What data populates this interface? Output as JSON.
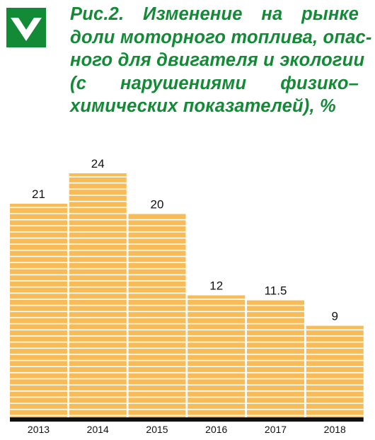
{
  "logo": {
    "icon": "check-chevron-icon",
    "color": "#138a36"
  },
  "title_lines": [
    "Рис.2. Изменение на рынке",
    "доли моторного топлива, опас-",
    "ного для двигателя и экологии",
    "(с нарушениями физико–",
    "химических показателей), %"
  ],
  "colors": {
    "title": "#138a36",
    "bar": "#f7bc57",
    "bar_stripe": "#ffffff",
    "axis": "#111111",
    "text": "#111111"
  },
  "chart_data": {
    "type": "bar",
    "title": "Рис.2. Изменение на рынке доли моторного топлива, опасного для двигателя и экологии (с нарушениями физико–химических показателей), %",
    "xlabel": "",
    "ylabel": "",
    "categories": [
      "2013",
      "2014",
      "2015",
      "2016",
      "2017",
      "2018"
    ],
    "values": [
      21,
      24,
      20,
      12,
      11.5,
      9
    ],
    "value_labels": [
      "21",
      "24",
      "20",
      "12",
      "11.5",
      "9"
    ],
    "ylim": [
      0,
      24
    ],
    "grid": false,
    "legend": "none"
  }
}
